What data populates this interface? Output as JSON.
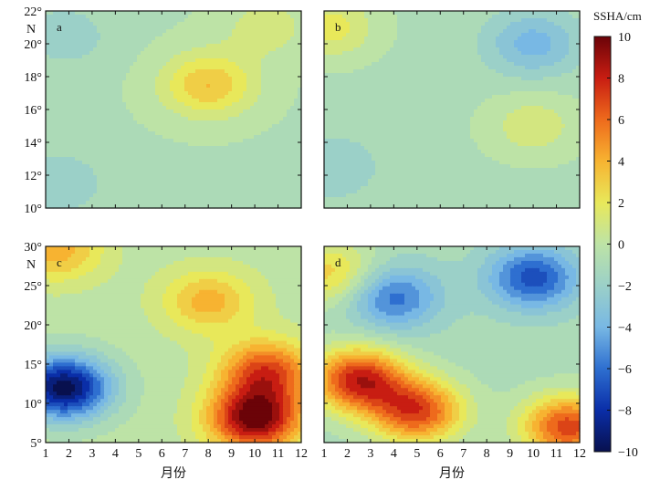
{
  "chart_data": [
    {
      "type": "heatmap",
      "panel": "a",
      "xlabel": "",
      "x_ticks": [
        "",
        "",
        "",
        "",
        "",
        "",
        "",
        "",
        "",
        "",
        "",
        ""
      ],
      "y_ticks": [
        "10°",
        "12°",
        "14°",
        "16°",
        "18°",
        "20°",
        "22°"
      ],
      "y_unit": "N",
      "xlim": [
        1,
        12
      ],
      "ylim": [
        10,
        22
      ],
      "value_range": [
        -10,
        10
      ],
      "peaks": [
        {
          "x": 8,
          "y": 17.5,
          "value": 3.5
        },
        {
          "x": 10.5,
          "y": 21,
          "value": 1
        },
        {
          "x": 1.8,
          "y": 20.5,
          "value": -2.2
        },
        {
          "x": 1.5,
          "y": 11.5,
          "value": -2.5
        }
      ],
      "base_value": -0.6
    },
    {
      "type": "heatmap",
      "panel": "b",
      "xlabel": "",
      "x_ticks": [
        "",
        "",
        "",
        "",
        "",
        "",
        "",
        "",
        "",
        "",
        "",
        ""
      ],
      "y_ticks": [
        "",
        "",
        "",
        "",
        "",
        "",
        ""
      ],
      "xlim": [
        1,
        12
      ],
      "ylim": [
        10,
        22
      ],
      "value_range": [
        -10,
        10
      ],
      "peaks": [
        {
          "x": 10,
          "y": 20,
          "value": -4
        },
        {
          "x": 1.3,
          "y": 12.5,
          "value": -2.5
        },
        {
          "x": 10,
          "y": 15,
          "value": 1.2
        },
        {
          "x": 1.2,
          "y": 21,
          "value": 2
        }
      ],
      "base_value": -0.8
    },
    {
      "type": "heatmap",
      "panel": "c",
      "xlabel": "月份",
      "x_ticks": [
        "1",
        "2",
        "3",
        "4",
        "5",
        "6",
        "7",
        "8",
        "9",
        "10",
        "11",
        "12"
      ],
      "y_ticks": [
        "5°",
        "10°",
        "15°",
        "20°",
        "25°",
        "30°"
      ],
      "y_unit": "N",
      "xlim": [
        1,
        12
      ],
      "ylim": [
        5,
        30
      ],
      "value_range": [
        -10,
        10
      ],
      "peaks": [
        {
          "x": 1.8,
          "y": 12,
          "value": -10
        },
        {
          "x": 10,
          "y": 8,
          "value": 10
        },
        {
          "x": 10.5,
          "y": 14,
          "value": 7
        },
        {
          "x": 8,
          "y": 23,
          "value": 4
        },
        {
          "x": 1.5,
          "y": 29.5,
          "value": 4
        }
      ],
      "base_value": 0
    },
    {
      "type": "heatmap",
      "panel": "d",
      "xlabel": "月份",
      "x_ticks": [
        "1",
        "2",
        "3",
        "4",
        "5",
        "6",
        "7",
        "8",
        "9",
        "10",
        "11",
        "12"
      ],
      "y_ticks": [
        "",
        "",
        "",
        "",
        "",
        ""
      ],
      "xlim": [
        1,
        12
      ],
      "ylim": [
        5,
        30
      ],
      "value_range": [
        -10,
        10
      ],
      "peaks": [
        {
          "x": 10,
          "y": 26,
          "value": -7
        },
        {
          "x": 4,
          "y": 23.5,
          "value": -6
        },
        {
          "x": 2.5,
          "y": 13,
          "value": 8
        },
        {
          "x": 5,
          "y": 9,
          "value": 7
        },
        {
          "x": 11.5,
          "y": 7,
          "value": 7
        },
        {
          "x": 1.3,
          "y": 26.5,
          "value": 3
        }
      ],
      "base_value": -1
    }
  ],
  "colorbar": {
    "title": "SSHA/cm",
    "ticks": [
      "10",
      "8",
      "6",
      "4",
      "2",
      "0",
      "−2",
      "−4",
      "−6",
      "−8",
      "−10"
    ],
    "range": [
      -10,
      10
    ],
    "stops": [
      "#08104e",
      "#0a2ea8",
      "#2e6fd0",
      "#78b8e4",
      "#9bd0c8",
      "#bde3a6",
      "#e8e85a",
      "#f7b331",
      "#ee6a1c",
      "#c81d12",
      "#6b0308"
    ]
  }
}
